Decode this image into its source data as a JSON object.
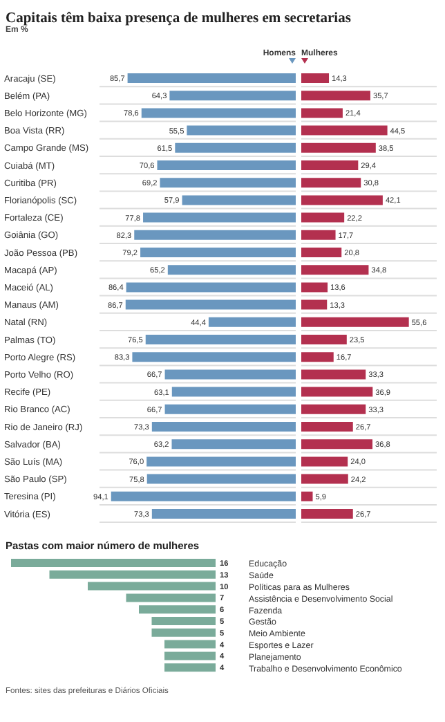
{
  "chart_data": [
    {
      "type": "bar",
      "orientation": "horizontal",
      "title": "Capitais têm baixa presença de mulheres em secretarias",
      "subtitle": "Em %",
      "legend": "top",
      "grid": "y",
      "tick_labels": "y",
      "xlim": [
        100,
        0
      ],
      "categories": [
        "Aracaju (SE)",
        "Belém (PA)",
        "Belo Horizonte (MG)",
        "Boa Vista (RR)",
        "Campo Grande (MS)",
        "Cuiabá (MT)",
        "Curitiba (PR)",
        "Florianópolis (SC)",
        "Fortaleza (CE)",
        "Goiânia (GO)",
        "João Pessoa (PB)",
        "Macapá (AP)",
        "Maceió (AL)",
        "Manaus (AM)",
        "Natal (RN)",
        "Palmas (TO)",
        "Porto Alegre (RS)",
        "Porto Velho (RO)",
        "Recife (PE)",
        "Rio Branco (AC)",
        "Rio de Janeiro (RJ)",
        "Salvador (BA)",
        "São Luís (MA)",
        "São Paulo (SP)",
        "Teresina (PI)",
        "Vitória (ES)"
      ],
      "series": [
        {
          "name": "Homens",
          "color": "#6a97bf",
          "values": [
            85.7,
            64.3,
            78.6,
            55.5,
            61.5,
            70.6,
            69.2,
            57.9,
            77.8,
            82.3,
            79.2,
            65.2,
            86.4,
            86.7,
            44.4,
            76.5,
            83.3,
            66.7,
            63.1,
            66.7,
            73.3,
            63.2,
            76.0,
            75.8,
            94.1,
            73.3
          ],
          "value_labels": [
            "85,7",
            "64,3",
            "78,6",
            "55,5",
            "61,5",
            "70,6",
            "69,2",
            "57,9",
            "77,8",
            "82,3",
            "79,2",
            "65,2",
            "86,4",
            "86,7",
            "44,4",
            "76,5",
            "83,3",
            "66,7",
            "63,1",
            "66,7",
            "73,3",
            "63,2",
            "76,0",
            "75,8",
            "94,1",
            "73,3"
          ]
        }
      ]
    },
    {
      "type": "bar",
      "orientation": "horizontal",
      "legend": "top",
      "grid": "y",
      "tick_labels": false,
      "xlim": [
        0,
        70
      ],
      "categories": [
        null,
        null,
        null,
        null,
        null,
        null,
        null,
        null,
        null,
        null,
        null,
        null,
        null,
        null,
        null,
        null,
        null,
        null,
        null,
        null,
        null,
        null,
        null,
        null,
        null,
        null
      ],
      "series": [
        {
          "name": "Mulheres",
          "color": "#b3304f",
          "values": [
            14.3,
            35.7,
            21.4,
            44.5,
            38.5,
            29.4,
            30.8,
            42.1,
            22.2,
            17.7,
            20.8,
            34.8,
            13.6,
            13.3,
            55.6,
            23.5,
            16.7,
            33.3,
            36.9,
            33.3,
            26.7,
            36.8,
            24.0,
            24.2,
            5.9,
            26.7
          ],
          "value_labels": [
            "14,3",
            "35,7",
            "21,4",
            "44,5",
            "38,5",
            "29,4",
            "30,8",
            "42,1",
            "22,2",
            "17,7",
            "20,8",
            "34,8",
            "13,6",
            "13,3",
            "55,6",
            "23,5",
            "16,7",
            "33,3",
            "36,9",
            "33,3",
            "26,7",
            "36,8",
            "24,0",
            "24,2",
            "5,9",
            "26,7"
          ]
        }
      ]
    },
    {
      "type": "bar",
      "orientation": "horizontal",
      "title": "Pastas com maior número de mulheres",
      "tick_labels": "y",
      "data_labels": true,
      "color": "#7aab9a",
      "categories": [
        "Educação",
        "Saúde",
        "Políticas para as Mulheres",
        "Assistência e Desenvolvimento Social",
        "Fazenda",
        "Gestão",
        "Meio Ambiente",
        "Esportes e Lazer",
        "Planejamento",
        "Trabalho e Desenvolvimento Econômico"
      ],
      "values": [
        16,
        13,
        10,
        7,
        6,
        5,
        5,
        4,
        4,
        4
      ],
      "annotations": [
        "Fontes: sites das prefeituras e Diários Oficiais"
      ]
    }
  ]
}
